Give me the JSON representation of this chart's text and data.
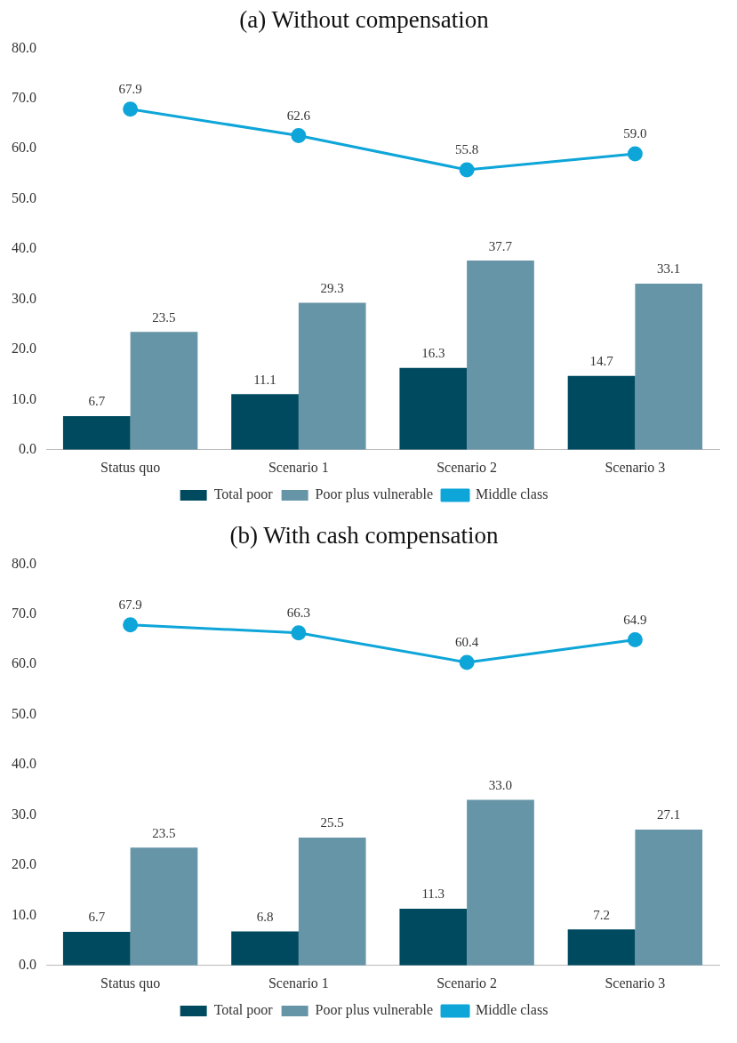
{
  "chart_data": [
    {
      "type": "bar",
      "title": "(a) Without compensation",
      "categories": [
        "Status quo",
        "Scenario 1",
        "Scenario 2",
        "Scenario 3"
      ],
      "ylim": [
        0,
        80
      ],
      "yticks": [
        {
          "value": 0,
          "label": "0.0"
        },
        {
          "value": 10,
          "label": "10.0"
        },
        {
          "value": 20,
          "label": "20.0"
        },
        {
          "value": 30,
          "label": "30.0"
        },
        {
          "value": 40,
          "label": "40.0"
        },
        {
          "value": 50,
          "label": "50.0"
        },
        {
          "value": 60,
          "label": "60.0"
        },
        {
          "value": 70,
          "label": "70.0"
        },
        {
          "value": 80,
          "label": "80.0"
        }
      ],
      "grid": false,
      "legend": "bottom",
      "marker": "circle",
      "line_style": "solid",
      "series": [
        {
          "name": "Total poor",
          "color": "#004a5f",
          "values": [
            6.7,
            11.1,
            16.3,
            14.7
          ],
          "value_labels": [
            "6.7",
            "11.1",
            "16.3",
            "14.7"
          ]
        },
        {
          "name": "Poor plus vulnerable",
          "color": "#6795a8",
          "values": [
            23.5,
            29.3,
            37.7,
            33.1
          ],
          "value_labels": [
            "23.5",
            "29.3",
            "37.7",
            "33.1"
          ]
        },
        {
          "name": "Middle class",
          "type": "line",
          "color": "#0ea5d9",
          "values": [
            67.9,
            62.6,
            55.8,
            59.0
          ],
          "value_labels": [
            "67.9",
            "62.6",
            "55.8",
            "59.0"
          ]
        }
      ]
    },
    {
      "type": "bar",
      "title": "(b) With cash compensation",
      "categories": [
        "Status quo",
        "Scenario 1",
        "Scenario 2",
        "Scenario 3"
      ],
      "ylim": [
        0,
        80
      ],
      "yticks": [
        {
          "value": 0,
          "label": "0.0"
        },
        {
          "value": 10,
          "label": "10.0"
        },
        {
          "value": 20,
          "label": "20.0"
        },
        {
          "value": 30,
          "label": "30.0"
        },
        {
          "value": 40,
          "label": "40.0"
        },
        {
          "value": 50,
          "label": "50.0"
        },
        {
          "value": 60,
          "label": "60.0"
        },
        {
          "value": 70,
          "label": "70.0"
        },
        {
          "value": 80,
          "label": "80.0"
        }
      ],
      "grid": false,
      "legend": "bottom",
      "marker": "circle",
      "line_style": "solid",
      "series": [
        {
          "name": "Total poor",
          "color": "#004a5f",
          "values": [
            6.7,
            6.8,
            11.3,
            7.2
          ],
          "value_labels": [
            "6.7",
            "6.8",
            "11.3",
            "7.2"
          ]
        },
        {
          "name": "Poor plus vulnerable",
          "color": "#6795a8",
          "values": [
            23.5,
            25.5,
            33.0,
            27.1
          ],
          "value_labels": [
            "23.5",
            "25.5",
            "33.0",
            "27.1"
          ]
        },
        {
          "name": "Middle class",
          "type": "line",
          "color": "#0ea5d9",
          "values": [
            67.9,
            66.3,
            60.4,
            64.9
          ],
          "value_labels": [
            "67.9",
            "66.3",
            "60.4",
            "64.9"
          ]
        }
      ]
    }
  ]
}
